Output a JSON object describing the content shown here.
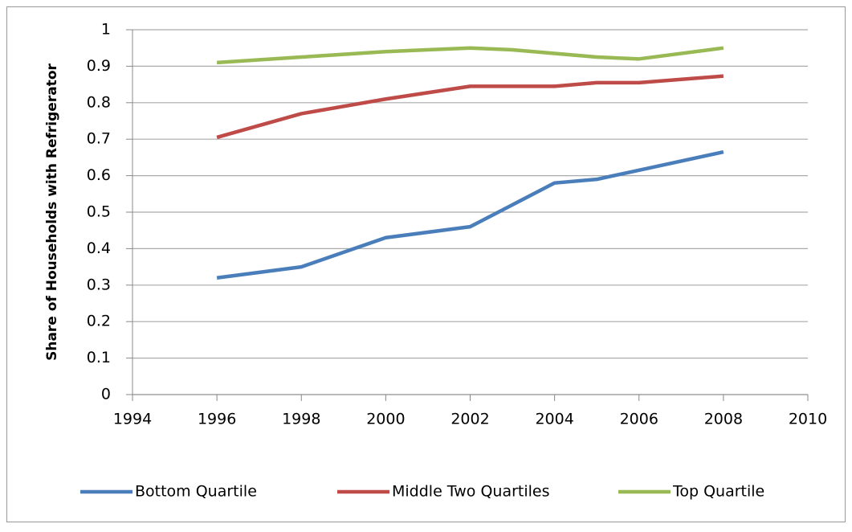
{
  "chart_data": {
    "type": "line",
    "y_label": "Share of Households  with Refrigerator",
    "x": [
      1996,
      1998,
      2000,
      2002,
      2003,
      2004,
      2005,
      2006,
      2008
    ],
    "series": [
      {
        "name": "Bottom Quartile",
        "color": "#4a7ebb",
        "values": [
          0.32,
          0.35,
          0.43,
          0.46,
          0.52,
          0.58,
          0.59,
          0.615,
          0.665
        ]
      },
      {
        "name": "Middle Two Quartiles",
        "color": "#be4b48",
        "values": [
          0.705,
          0.77,
          0.81,
          0.845,
          0.845,
          0.845,
          0.855,
          0.855,
          0.873
        ]
      },
      {
        "name": "Top Quartile",
        "color": "#98b954",
        "values": [
          0.91,
          0.925,
          0.94,
          0.95,
          0.945,
          0.935,
          0.925,
          0.92,
          0.95
        ]
      }
    ],
    "xlim": [
      1994,
      2010
    ],
    "xticks": [
      1994,
      1996,
      1998,
      2000,
      2002,
      2004,
      2006,
      2008,
      2010
    ],
    "ylim": [
      0,
      1
    ],
    "yticks": [
      0,
      0.1,
      0.2,
      0.3,
      0.4,
      0.5,
      0.6,
      0.7,
      0.8,
      0.9,
      1
    ],
    "grid": true,
    "legend": "bottom"
  }
}
